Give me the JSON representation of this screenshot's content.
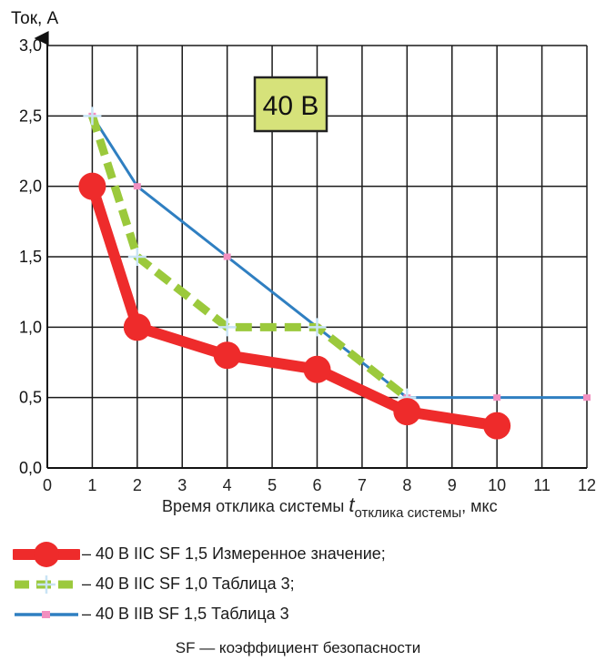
{
  "chart_data": {
    "type": "line",
    "ylabel": "Ток, А",
    "xlabel_main": "Время отклика системы ",
    "xlabel_var": "t",
    "xlabel_sub": "отклика системы",
    "xlabel_unit": ", мкс",
    "xlim": [
      0,
      12
    ],
    "ylim": [
      0,
      3
    ],
    "x_ticks": [
      0,
      1,
      2,
      3,
      4,
      5,
      6,
      7,
      8,
      9,
      10,
      11,
      12
    ],
    "x_tick_labels": [
      "0",
      "1",
      "2",
      "3",
      "4",
      "5",
      "6",
      "7",
      "8",
      "9",
      "10",
      "11",
      "12"
    ],
    "y_ticks": [
      0,
      0.5,
      1,
      1.5,
      2,
      2.5,
      3
    ],
    "y_tick_labels": [
      "0,0",
      "0,5",
      "1,0",
      "1,5",
      "2,0",
      "2,5",
      "3,0"
    ],
    "grid": true,
    "annotation": "40 В",
    "series": [
      {
        "name": "– 40 В IIC SF 1,5 Измеренное значение;",
        "color": "#ee2b2b",
        "x": [
          1,
          2,
          4,
          6,
          8,
          10
        ],
        "y": [
          2.0,
          1.0,
          0.8,
          0.7,
          0.4,
          0.3
        ]
      },
      {
        "name": "– 40 В IIC SF 1,0 Таблица 3;",
        "color": "#9bc93c",
        "x": [
          1,
          2,
          4,
          6,
          8
        ],
        "y": [
          2.5,
          1.5,
          1.0,
          1.0,
          0.5
        ]
      },
      {
        "name": "– 40 В IIB SF 1,5 Таблица 3",
        "color": "#2f7fc1",
        "x": [
          1,
          2,
          4,
          6,
          8,
          10,
          12
        ],
        "y": [
          2.5,
          2.0,
          1.5,
          1.0,
          0.5,
          0.5,
          0.5
        ]
      }
    ]
  },
  "footnote": "SF — коэффициент безопасности"
}
